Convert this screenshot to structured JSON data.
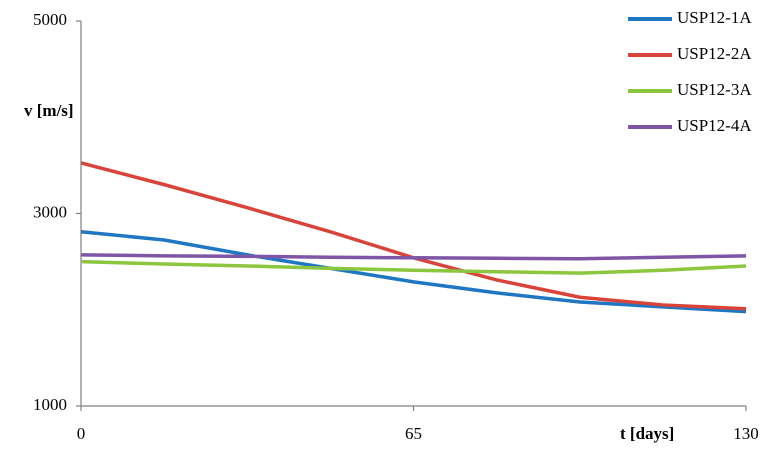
{
  "chart_data": {
    "type": "line",
    "x_label": "t  [days]",
    "y_label": "v [m/s]",
    "x": [
      0,
      16.25,
      32.5,
      48.75,
      65,
      81.25,
      97.5,
      113.75,
      130
    ],
    "xlim": [
      0,
      130
    ],
    "xticks": [
      0,
      65,
      130
    ],
    "ylim": [
      1000,
      5000
    ],
    "yticks": [
      1000,
      3000,
      5000
    ],
    "legend": "top-right",
    "series": [
      {
        "name": "USP12-1A",
        "color": "#1f77c4",
        "values": [
          2810,
          2725,
          2570,
          2430,
          2290,
          2175,
          2080,
          2030,
          1980
        ]
      },
      {
        "name": "USP12-2A",
        "color": "#d9443a",
        "values": [
          3525,
          3300,
          3060,
          2810,
          2540,
          2310,
          2130,
          2050,
          2010
        ]
      },
      {
        "name": "USP12-3A",
        "color": "#8cc63e",
        "values": [
          2500,
          2475,
          2455,
          2430,
          2410,
          2395,
          2380,
          2410,
          2455
        ]
      },
      {
        "name": "USP12-4A",
        "color": "#7f55a5",
        "values": [
          2570,
          2560,
          2555,
          2545,
          2540,
          2535,
          2530,
          2545,
          2560
        ]
      }
    ]
  }
}
